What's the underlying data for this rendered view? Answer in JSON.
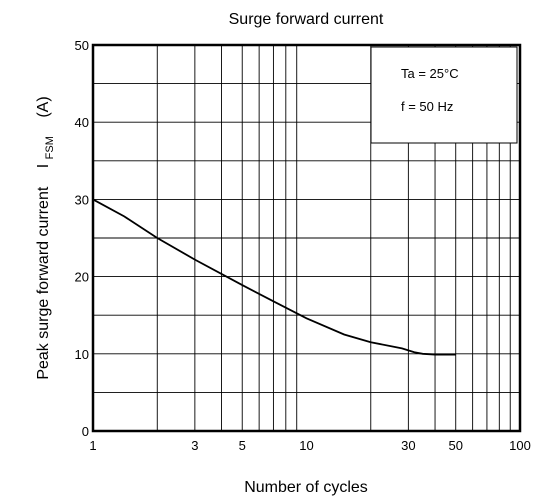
{
  "chart_data": {
    "type": "line",
    "title": "Surge forward current",
    "xlabel": "Number of cycles",
    "ylabel": {
      "text": "Peak surge forward current",
      "symbol_main": "I",
      "symbol_sub": "FSM",
      "unit": "(A)"
    },
    "x_scale": "log",
    "xlim": [
      1,
      100
    ],
    "ylim": [
      0,
      50
    ],
    "x_ticks": [
      1,
      3,
      5,
      10,
      30,
      50,
      100
    ],
    "y_ticks": [
      0,
      10,
      20,
      30,
      40,
      50
    ],
    "x_grid": [
      2,
      3,
      4,
      5,
      6,
      7,
      8,
      9,
      20,
      30,
      40,
      50,
      60,
      70,
      80,
      90
    ],
    "y_grid": [
      5,
      10,
      15,
      20,
      25,
      30,
      35,
      40,
      45
    ],
    "grid": true,
    "legend": {
      "placement": "top-right",
      "lines": [
        "Ta = 25°C",
        "f = 50 Hz"
      ]
    },
    "series": [
      {
        "x": [
          1,
          1.4,
          2,
          3,
          5,
          7,
          10,
          15,
          20,
          28,
          32,
          35,
          40,
          50
        ],
        "y": [
          30,
          27.8,
          25,
          22.2,
          18.9,
          16.8,
          14.6,
          12.5,
          11.5,
          10.7,
          10.2,
          10,
          9.9,
          9.9
        ]
      }
    ]
  }
}
